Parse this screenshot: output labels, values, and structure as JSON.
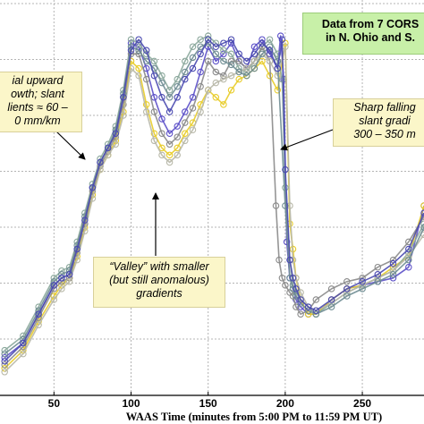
{
  "chart_data": {
    "type": "line",
    "xlabel": "WAAS Time (minutes from 5:00 PM to 11:59 PM UT)",
    "xlim": [
      15,
      290
    ],
    "ylim": [
      0,
      1
    ],
    "x_ticks": [
      50,
      100,
      150,
      200,
      250
    ],
    "x_tick_labels": [
      "50",
      "100",
      "150",
      "200",
      "250"
    ],
    "grid": true,
    "colors": {
      "grid": "#b4b4b4",
      "axis": "#000000",
      "series_colors": [
        "#5b4fc8",
        "#e8cc28",
        "#8ba89c",
        "#8a8a8a",
        "#b8b8a8",
        "#6e8c92",
        "#4a4ab0"
      ]
    },
    "series": [
      {
        "x": [
          18,
          30,
          40,
          50,
          55,
          60,
          65,
          70,
          75,
          80,
          85,
          90,
          95,
          100,
          105,
          110,
          115,
          120,
          125,
          130,
          135,
          140,
          145,
          150,
          155,
          160,
          165,
          170,
          175,
          180,
          185,
          190,
          195,
          197,
          199,
          201,
          203,
          205,
          207,
          210,
          215,
          220,
          230,
          240,
          250,
          260,
          270,
          280,
          290
        ],
        "values": [
          0.08,
          0.12,
          0.2,
          0.28,
          0.3,
          0.31,
          0.38,
          0.45,
          0.55,
          0.62,
          0.66,
          0.7,
          0.8,
          0.95,
          0.94,
          0.88,
          0.8,
          0.74,
          0.7,
          0.72,
          0.76,
          0.8,
          0.87,
          0.94,
          0.9,
          0.92,
          0.95,
          0.9,
          0.88,
          0.94,
          0.96,
          0.92,
          0.88,
          0.97,
          0.85,
          0.4,
          0.3,
          0.28,
          0.24,
          0.22,
          0.2,
          0.2,
          0.24,
          0.27,
          0.28,
          0.29,
          0.3,
          0.33,
          0.5
        ]
      },
      {
        "x": [
          18,
          30,
          40,
          50,
          55,
          60,
          65,
          70,
          75,
          80,
          85,
          90,
          95,
          100,
          105,
          110,
          115,
          120,
          125,
          130,
          135,
          140,
          145,
          150,
          155,
          160,
          165,
          170,
          175,
          180,
          185,
          190,
          195,
          200,
          203,
          205,
          207,
          210,
          215,
          220,
          230,
          240,
          250,
          260,
          270,
          280,
          290
        ],
        "values": [
          0.05,
          0.1,
          0.18,
          0.25,
          0.28,
          0.3,
          0.36,
          0.44,
          0.53,
          0.6,
          0.64,
          0.68,
          0.76,
          0.9,
          0.88,
          0.78,
          0.7,
          0.66,
          0.64,
          0.66,
          0.7,
          0.73,
          0.78,
          0.82,
          0.8,
          0.78,
          0.82,
          0.85,
          0.86,
          0.88,
          0.9,
          0.86,
          0.82,
          0.95,
          0.45,
          0.38,
          0.3,
          0.24,
          0.2,
          0.2,
          0.24,
          0.27,
          0.28,
          0.3,
          0.33,
          0.36,
          0.5
        ]
      },
      {
        "x": [
          18,
          30,
          40,
          50,
          55,
          60,
          65,
          70,
          75,
          80,
          85,
          90,
          95,
          100,
          105,
          110,
          115,
          120,
          125,
          130,
          135,
          140,
          145,
          150,
          155,
          160,
          165,
          170,
          175,
          180,
          185,
          190,
          195,
          198,
          200,
          203,
          205,
          207,
          210,
          215,
          220,
          230,
          240,
          250,
          260,
          270,
          280,
          290
        ],
        "values": [
          0.1,
          0.14,
          0.22,
          0.3,
          0.32,
          0.33,
          0.4,
          0.48,
          0.56,
          0.63,
          0.67,
          0.72,
          0.82,
          0.96,
          0.95,
          0.92,
          0.9,
          0.86,
          0.82,
          0.85,
          0.9,
          0.94,
          0.96,
          0.97,
          0.95,
          0.93,
          0.92,
          0.88,
          0.87,
          0.9,
          0.94,
          0.96,
          0.92,
          0.85,
          0.55,
          0.35,
          0.28,
          0.26,
          0.24,
          0.22,
          0.2,
          0.23,
          0.26,
          0.28,
          0.3,
          0.32,
          0.37,
          0.45
        ]
      },
      {
        "x": [
          18,
          30,
          40,
          50,
          55,
          60,
          65,
          70,
          75,
          80,
          85,
          90,
          95,
          100,
          105,
          110,
          115,
          120,
          125,
          130,
          135,
          140,
          145,
          150,
          155,
          160,
          165,
          170,
          175,
          180,
          185,
          190,
          194,
          196,
          198,
          200,
          203,
          205,
          207,
          210,
          215,
          220,
          230,
          240,
          250,
          260,
          270,
          280,
          290
        ],
        "values": [
          0.06,
          0.11,
          0.19,
          0.27,
          0.29,
          0.3,
          0.37,
          0.45,
          0.54,
          0.61,
          0.65,
          0.69,
          0.78,
          0.92,
          0.92,
          0.85,
          0.76,
          0.7,
          0.67,
          0.69,
          0.73,
          0.77,
          0.83,
          0.9,
          0.87,
          0.86,
          0.9,
          0.9,
          0.88,
          0.9,
          0.94,
          0.9,
          0.5,
          0.35,
          0.3,
          0.28,
          0.26,
          0.25,
          0.22,
          0.2,
          0.21,
          0.24,
          0.27,
          0.29,
          0.3,
          0.33,
          0.35,
          0.4,
          0.47
        ]
      },
      {
        "x": [
          18,
          30,
          40,
          50,
          55,
          60,
          65,
          70,
          75,
          80,
          85,
          90,
          95,
          100,
          105,
          110,
          115,
          120,
          125,
          130,
          135,
          140,
          145,
          150,
          155,
          160,
          165,
          170,
          175,
          180,
          185,
          190,
          195,
          200,
          203,
          205,
          207,
          210,
          215,
          220,
          230,
          240,
          250,
          260,
          270,
          280,
          290
        ],
        "values": [
          0.04,
          0.09,
          0.17,
          0.24,
          0.27,
          0.29,
          0.35,
          0.43,
          0.52,
          0.6,
          0.64,
          0.67,
          0.75,
          0.88,
          0.86,
          0.76,
          0.68,
          0.64,
          0.62,
          0.64,
          0.68,
          0.71,
          0.76,
          0.82,
          0.84,
          0.85,
          0.86,
          0.87,
          0.88,
          0.9,
          0.92,
          0.9,
          0.86,
          0.94,
          0.5,
          0.35,
          0.3,
          0.26,
          0.22,
          0.21,
          0.23,
          0.26,
          0.28,
          0.3,
          0.32,
          0.36,
          0.42
        ]
      },
      {
        "x": [
          18,
          30,
          40,
          50,
          55,
          60,
          65,
          70,
          75,
          80,
          85,
          90,
          95,
          100,
          105,
          110,
          115,
          120,
          125,
          130,
          135,
          140,
          145,
          150,
          155,
          160,
          165,
          170,
          175,
          180,
          185,
          190,
          195,
          200,
          203,
          205,
          207,
          210,
          215,
          220,
          230,
          240,
          250,
          260,
          270,
          280,
          290
        ],
        "values": [
          0.09,
          0.13,
          0.21,
          0.29,
          0.31,
          0.32,
          0.39,
          0.47,
          0.55,
          0.62,
          0.66,
          0.71,
          0.81,
          0.94,
          0.93,
          0.9,
          0.88,
          0.84,
          0.8,
          0.83,
          0.87,
          0.91,
          0.94,
          0.95,
          0.92,
          0.9,
          0.89,
          0.87,
          0.86,
          0.88,
          0.92,
          0.94,
          0.9,
          0.5,
          0.3,
          0.27,
          0.25,
          0.23,
          0.21,
          0.2,
          0.22,
          0.25,
          0.27,
          0.29,
          0.31,
          0.35,
          0.44
        ]
      },
      {
        "x": [
          18,
          30,
          40,
          50,
          55,
          60,
          65,
          70,
          75,
          80,
          85,
          90,
          95,
          100,
          105,
          110,
          115,
          120,
          125,
          130,
          135,
          140,
          145,
          150,
          155,
          160,
          165,
          170,
          175,
          180,
          185,
          190,
          195,
          198,
          200,
          203,
          205,
          207,
          210,
          215,
          220,
          230,
          240,
          250,
          260,
          270,
          280,
          290
        ],
        "values": [
          0.07,
          0.12,
          0.2,
          0.28,
          0.3,
          0.31,
          0.38,
          0.46,
          0.55,
          0.62,
          0.66,
          0.7,
          0.8,
          0.93,
          0.96,
          0.93,
          0.86,
          0.8,
          0.76,
          0.8,
          0.85,
          0.88,
          0.92,
          0.96,
          0.94,
          0.95,
          0.96,
          0.92,
          0.9,
          0.92,
          0.95,
          0.93,
          0.88,
          0.96,
          0.6,
          0.35,
          0.3,
          0.27,
          0.24,
          0.22,
          0.21,
          0.24,
          0.27,
          0.29,
          0.31,
          0.34,
          0.38,
          0.48
        ]
      }
    ]
  },
  "annotations": {
    "data_box": [
      "Data from 7 CORS",
      "in N. Ohio and S."
    ],
    "upward": [
      "ial upward",
      "owth; slant",
      "lients ≈ 60 –",
      "0 mm/km"
    ],
    "falling": [
      "Sharp falling",
      "slant gradi",
      "300 – 350 m"
    ],
    "valley": [
      "“Valley” with smaller",
      "(but still anomalous)",
      "gradients"
    ]
  }
}
